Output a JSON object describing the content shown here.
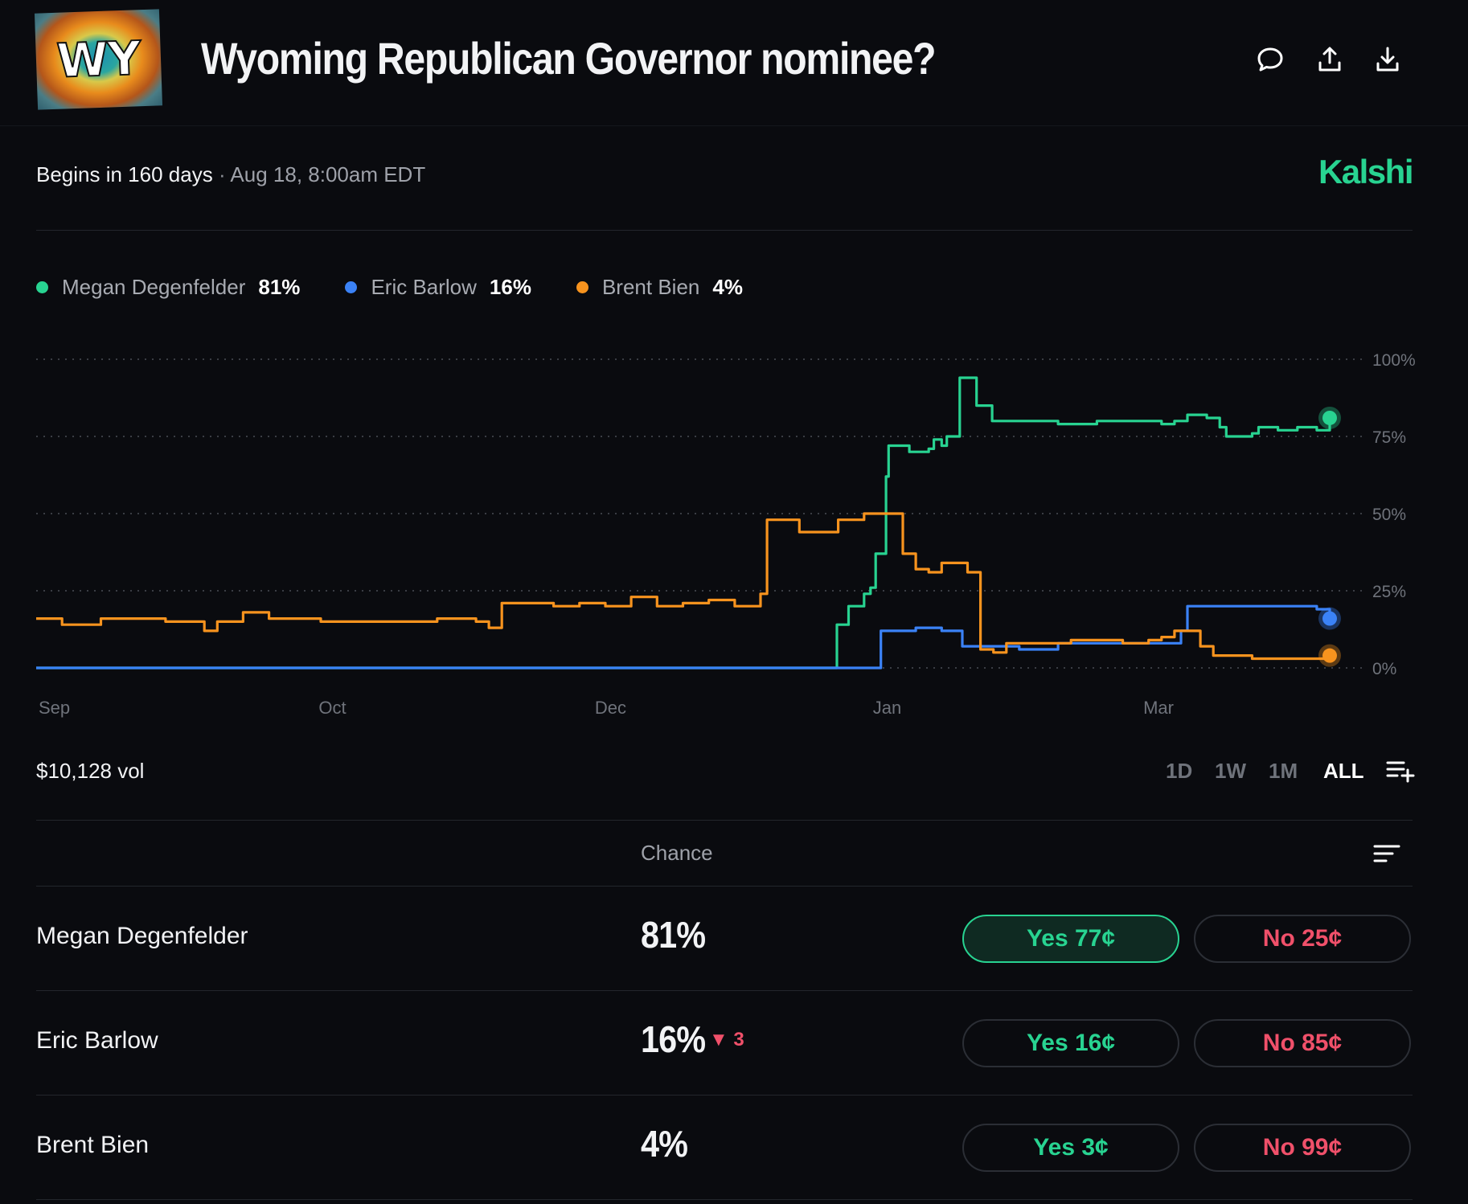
{
  "header": {
    "logo_text": "WY",
    "title": "Wyoming Republican Governor nominee?",
    "icons": [
      "comment-icon",
      "share-icon",
      "download-icon"
    ]
  },
  "meta": {
    "begins": "Begins in 160 days",
    "separator": "·",
    "date": "Aug 18, 8:00am EDT",
    "brand": "Kalshi"
  },
  "legend": [
    {
      "name": "Megan Degenfelder",
      "pct": "81%",
      "color": "#28d391"
    },
    {
      "name": "Eric Barlow",
      "pct": "16%",
      "color": "#3b82f6"
    },
    {
      "name": "Brent Bien",
      "pct": "4%",
      "color": "#f7931e"
    }
  ],
  "chart_data": {
    "type": "line",
    "x_ticks": [
      "Sep",
      "Oct",
      "Dec",
      "Jan",
      "Mar"
    ],
    "y_ticks": [
      "100%",
      "75%",
      "50%",
      "25%",
      "0%"
    ],
    "ylim": [
      0,
      100
    ],
    "grid": "horizontal-dotted",
    "series": [
      {
        "name": "Megan Degenfelder",
        "color": "#28d391",
        "points": [
          [
            0,
            0
          ],
          [
            0.618,
            0
          ],
          [
            0.619,
            14
          ],
          [
            0.626,
            14
          ],
          [
            0.628,
            20
          ],
          [
            0.64,
            24
          ],
          [
            0.645,
            26
          ],
          [
            0.649,
            37
          ],
          [
            0.652,
            37
          ],
          [
            0.657,
            62
          ],
          [
            0.659,
            72
          ],
          [
            0.672,
            72
          ],
          [
            0.675,
            70
          ],
          [
            0.69,
            71
          ],
          [
            0.694,
            74
          ],
          [
            0.7,
            72
          ],
          [
            0.704,
            75
          ],
          [
            0.71,
            75
          ],
          [
            0.714,
            94
          ],
          [
            0.725,
            94
          ],
          [
            0.727,
            85
          ],
          [
            0.735,
            85
          ],
          [
            0.739,
            80
          ],
          [
            0.75,
            80
          ],
          [
            0.765,
            80
          ],
          [
            0.79,
            79
          ],
          [
            0.82,
            80
          ],
          [
            0.85,
            80
          ],
          [
            0.87,
            79
          ],
          [
            0.88,
            80
          ],
          [
            0.89,
            82
          ],
          [
            0.905,
            81
          ],
          [
            0.915,
            78
          ],
          [
            0.92,
            75
          ],
          [
            0.93,
            75
          ],
          [
            0.94,
            76
          ],
          [
            0.945,
            78
          ],
          [
            0.96,
            77
          ],
          [
            0.975,
            78
          ],
          [
            0.99,
            77
          ],
          [
            1.0,
            81
          ]
        ]
      },
      {
        "name": "Eric Barlow",
        "color": "#3b82f6",
        "points": [
          [
            0,
            0
          ],
          [
            0.652,
            0
          ],
          [
            0.653,
            12
          ],
          [
            0.68,
            13
          ],
          [
            0.7,
            12
          ],
          [
            0.712,
            12
          ],
          [
            0.716,
            7
          ],
          [
            0.74,
            7
          ],
          [
            0.76,
            6
          ],
          [
            0.79,
            8
          ],
          [
            0.83,
            8
          ],
          [
            0.86,
            8
          ],
          [
            0.88,
            8
          ],
          [
            0.885,
            12
          ],
          [
            0.89,
            20
          ],
          [
            0.95,
            20
          ],
          [
            0.99,
            19
          ],
          [
            1.0,
            16
          ]
        ]
      },
      {
        "name": "Brent Bien",
        "color": "#f7931e",
        "points": [
          [
            0,
            16
          ],
          [
            0.02,
            14
          ],
          [
            0.05,
            16
          ],
          [
            0.1,
            15
          ],
          [
            0.13,
            12
          ],
          [
            0.14,
            15
          ],
          [
            0.16,
            18
          ],
          [
            0.18,
            16
          ],
          [
            0.22,
            15
          ],
          [
            0.24,
            15
          ],
          [
            0.28,
            15
          ],
          [
            0.31,
            16
          ],
          [
            0.34,
            15
          ],
          [
            0.35,
            13
          ],
          [
            0.36,
            21
          ],
          [
            0.4,
            20
          ],
          [
            0.42,
            21
          ],
          [
            0.44,
            20
          ],
          [
            0.46,
            23
          ],
          [
            0.48,
            20
          ],
          [
            0.5,
            21
          ],
          [
            0.52,
            22
          ],
          [
            0.54,
            20
          ],
          [
            0.55,
            20
          ],
          [
            0.56,
            24
          ],
          [
            0.565,
            48
          ],
          [
            0.59,
            44
          ],
          [
            0.62,
            48
          ],
          [
            0.64,
            50
          ],
          [
            0.665,
            50
          ],
          [
            0.67,
            37
          ],
          [
            0.68,
            32
          ],
          [
            0.69,
            31
          ],
          [
            0.7,
            34
          ],
          [
            0.72,
            31
          ],
          [
            0.725,
            31
          ],
          [
            0.73,
            6
          ],
          [
            0.74,
            5
          ],
          [
            0.75,
            8
          ],
          [
            0.8,
            9
          ],
          [
            0.84,
            8
          ],
          [
            0.86,
            9
          ],
          [
            0.87,
            10
          ],
          [
            0.88,
            12
          ],
          [
            0.89,
            12
          ],
          [
            0.9,
            7
          ],
          [
            0.91,
            4
          ],
          [
            0.94,
            3
          ],
          [
            0.97,
            3
          ],
          [
            1.0,
            4
          ]
        ]
      }
    ]
  },
  "vol": "$10,128 vol",
  "ranges": [
    {
      "label": "1D",
      "active": false
    },
    {
      "label": "1W",
      "active": false
    },
    {
      "label": "1M",
      "active": false
    },
    {
      "label": "ALL",
      "active": true
    }
  ],
  "table": {
    "header": "Chance",
    "rows": [
      {
        "name": "Megan Degenfelder",
        "chance": "81%",
        "delta": "",
        "yes": "Yes 77¢",
        "no": "No 25¢",
        "highlight": true
      },
      {
        "name": "Eric Barlow",
        "chance": "16%",
        "delta": "▼ 3",
        "yes": "Yes 16¢",
        "no": "No 85¢",
        "highlight": false
      },
      {
        "name": "Brent Bien",
        "chance": "4%",
        "delta": "",
        "yes": "Yes 3¢",
        "no": "No 99¢",
        "highlight": false
      }
    ]
  }
}
